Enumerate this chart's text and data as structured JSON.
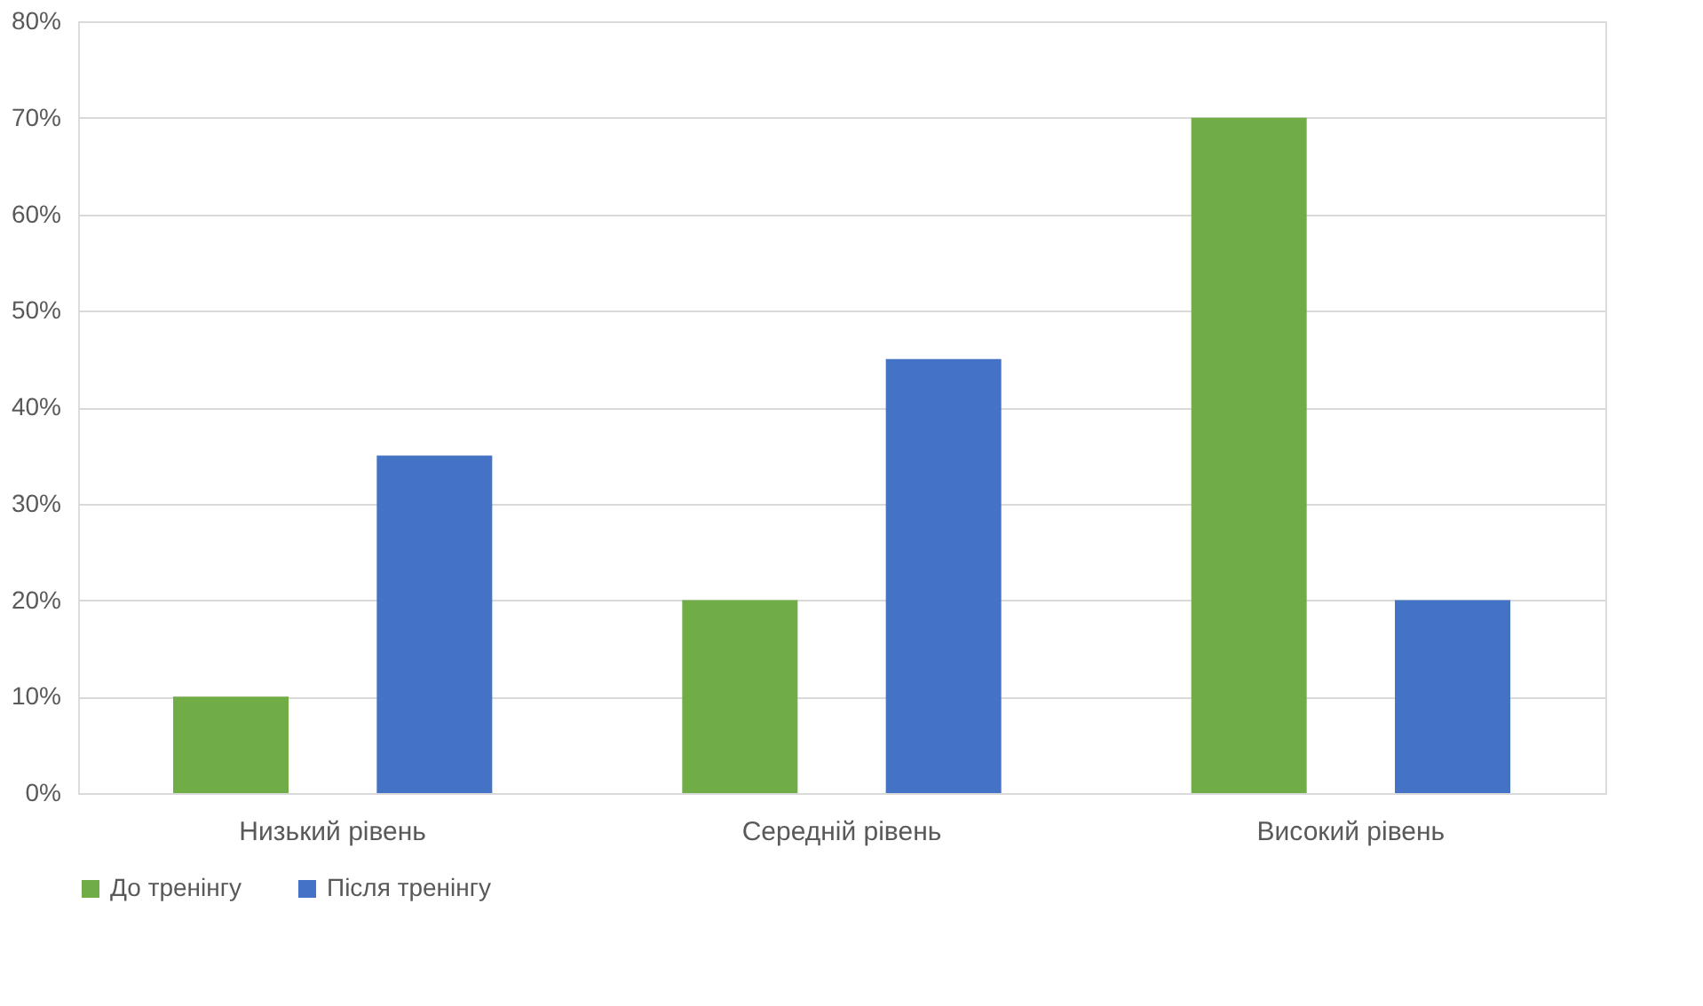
{
  "chart_data": {
    "type": "bar",
    "categories": [
      "Низький рівень",
      "Середній рівень",
      "Високий рівень"
    ],
    "series": [
      {
        "name": "До тренінгу",
        "color": "#70ad47",
        "values": [
          10,
          20,
          70
        ]
      },
      {
        "name": "Після тренінгу",
        "color": "#4472c4",
        "values": [
          35,
          45,
          20
        ]
      }
    ],
    "ylim": [
      0,
      80
    ],
    "yticks": [
      {
        "value": 0,
        "label": "0%"
      },
      {
        "value": 10,
        "label": "10%"
      },
      {
        "value": 20,
        "label": "20%"
      },
      {
        "value": 30,
        "label": "30%"
      },
      {
        "value": 40,
        "label": "40%"
      },
      {
        "value": 50,
        "label": "50%"
      },
      {
        "value": 60,
        "label": "60%"
      },
      {
        "value": 70,
        "label": "70%"
      },
      {
        "value": 80,
        "label": "80%"
      }
    ],
    "grid": "y",
    "legend": "bottom"
  }
}
